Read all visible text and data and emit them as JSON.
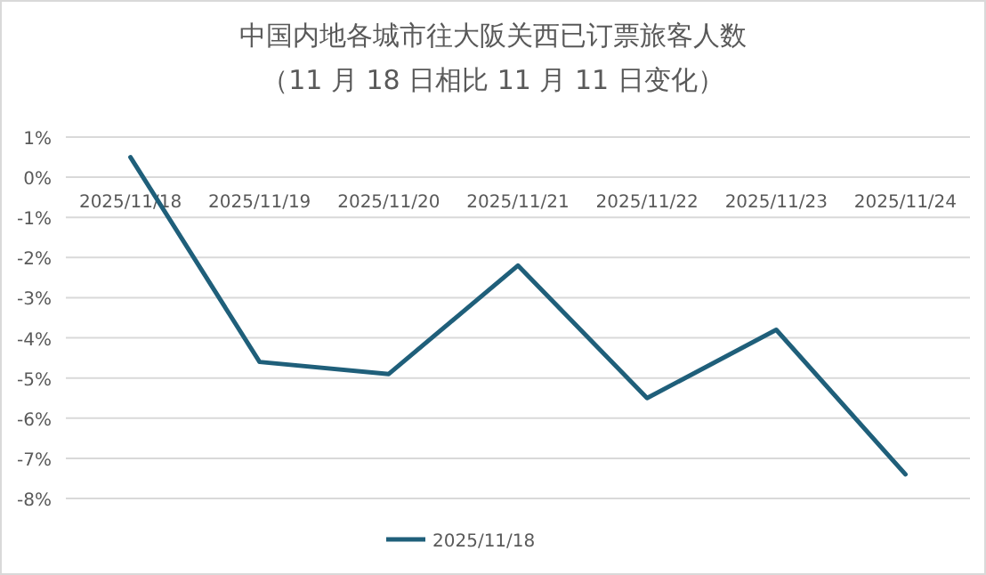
{
  "chart_data": {
    "type": "line",
    "title": "中国内地各城市往大阪关西已订票旅客人数",
    "subtitle": "（11 月 18 日相比 11 月 11 日变化）",
    "categories": [
      "2025/11/18",
      "2025/11/19",
      "2025/11/20",
      "2025/11/21",
      "2025/11/22",
      "2025/11/23",
      "2025/11/24"
    ],
    "series": [
      {
        "name": "2025/11/18",
        "color": "#1f5f7a",
        "values": [
          0.5,
          -4.6,
          -4.9,
          -2.2,
          -5.5,
          -3.8,
          -7.4
        ]
      }
    ],
    "ylim": [
      -8,
      1
    ],
    "yticks": [
      {
        "value": -8,
        "label": "-8%"
      },
      {
        "value": -7,
        "label": "-7%"
      },
      {
        "value": -6,
        "label": "-6%"
      },
      {
        "value": -5,
        "label": "-5%"
      },
      {
        "value": -4,
        "label": "-4%"
      },
      {
        "value": -3,
        "label": "-3%"
      },
      {
        "value": -2,
        "label": "-2%"
      },
      {
        "value": -1,
        "label": "-1%"
      },
      {
        "value": 0,
        "label": "0%"
      },
      {
        "value": 1,
        "label": "1%"
      }
    ],
    "grid": "y",
    "legend": "bottom",
    "marker": "none",
    "line_style": "solid"
  }
}
